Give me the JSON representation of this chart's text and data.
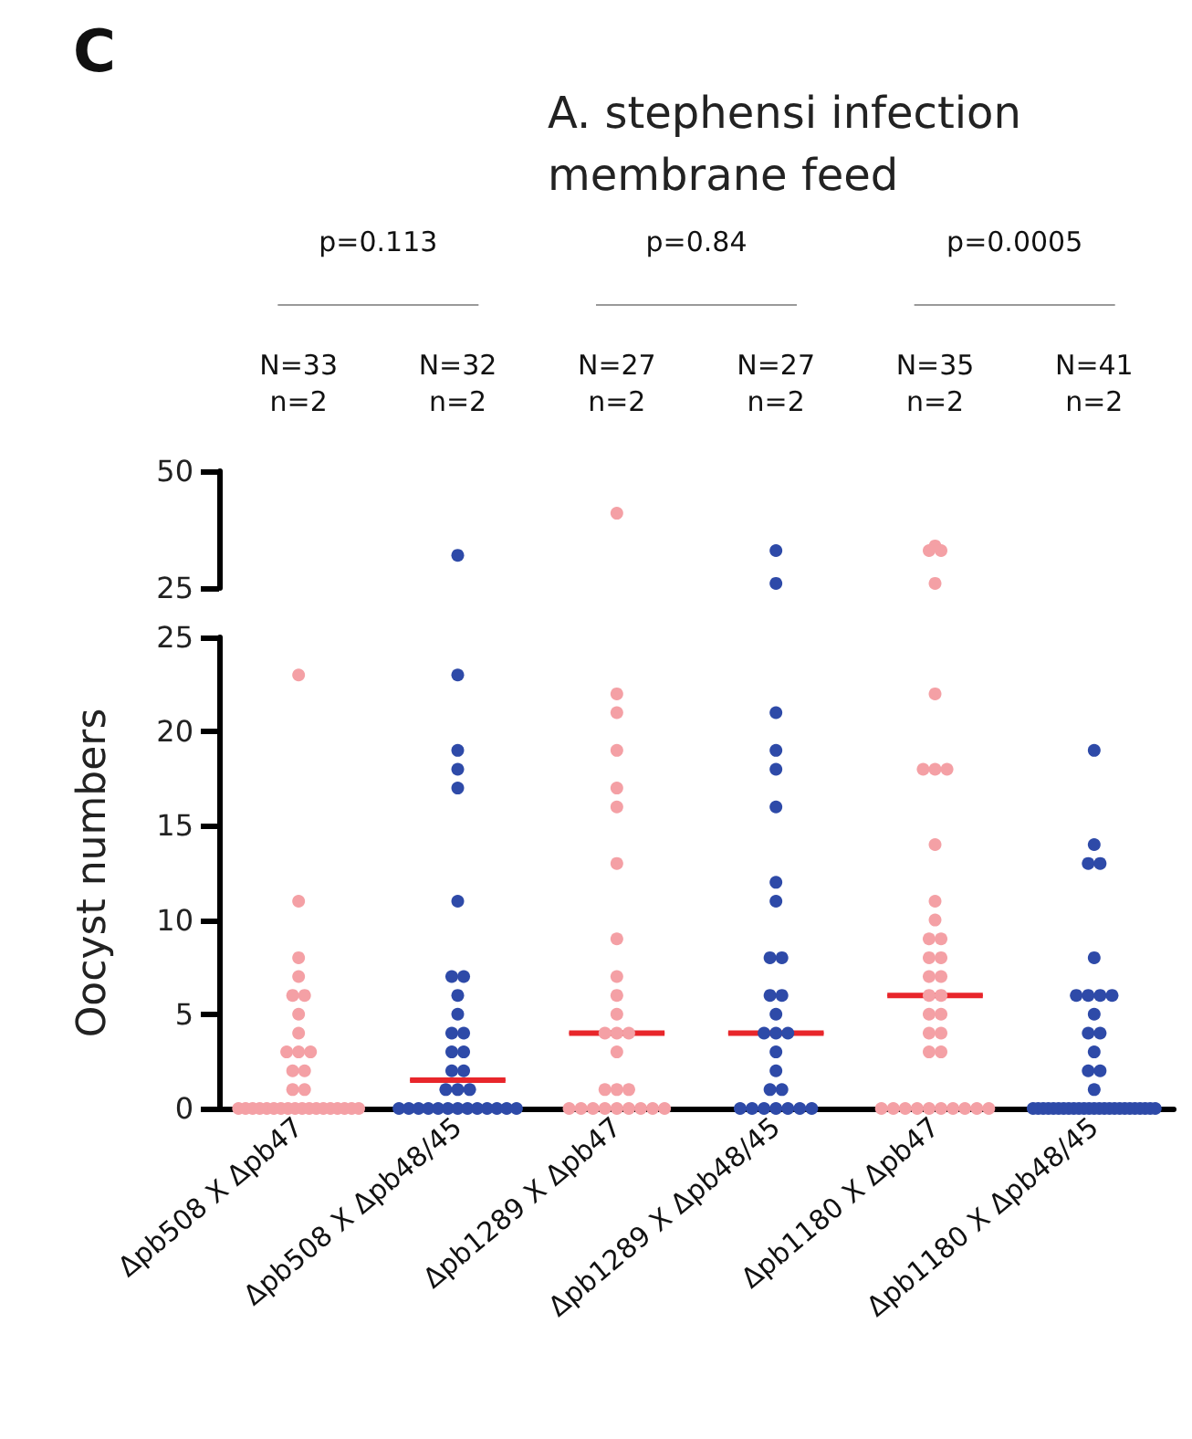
{
  "chart_data": [
    {
      "type": "scatter",
      "title": "A. stephensi infection\nmembrane feed",
      "annotations": [
        "C",
        "p=0.113",
        "p=0.84",
        "p=0.0005",
        "N=33\nn=2",
        "N=32\nn=2",
        "N=27\nn=2",
        "N=27\nn=2",
        "N=35\nn=2",
        "N=41\nn=2"
      ],
      "categories": [
        "Δpb508 X Δpb47",
        "Δpb508 X Δpb48/45",
        "Δpb1289 X Δpb47",
        "Δpb1289 X Δpb48/45",
        "Δpb1180 X Δpb47",
        "Δpb1180 X Δpb48/45"
      ],
      "series": [
        {
          "color": "#2e4aa8",
          "x": [
            "Δpb508 X Δpb48/45"
          ],
          "values": [
            32
          ]
        },
        {
          "color": "#f4a0a5",
          "x": [
            "Δpb1289 X Δpb47"
          ],
          "values": [
            41
          ]
        },
        {
          "color": "#2e4aa8",
          "x": [
            "Δpb1289 X Δpb48/45",
            "Δpb1289 X Δpb48/45"
          ],
          "values": [
            33,
            26
          ]
        },
        {
          "color": "#f4a0a5",
          "x": [
            "Δpb1180 X Δpb47",
            "Δpb1180 X Δpb47",
            "Δpb1180 X Δpb47",
            "Δpb1180 X Δpb47"
          ],
          "values": [
            34,
            33,
            33,
            26
          ]
        }
      ],
      "ylim": [
        25,
        50
      ],
      "yticks": [
        25,
        50
      ],
      "tick_labels": "y",
      "grid": false,
      "marker": "circle"
    },
    {
      "type": "scatter",
      "ylabel": "Oocyst numbers",
      "categories": [
        "Δpb508 X Δpb47",
        "Δpb508 X Δpb48/45",
        "Δpb1289 X Δpb47",
        "Δpb1289 X Δpb48/45",
        "Δpb1180 X Δpb47",
        "Δpb1180 X Δpb48/45"
      ],
      "series": [
        {
          "color": "#f4a0a5",
          "x": [
            "Δpb508 X Δpb47",
            "Δpb508 X Δpb47",
            "Δpb508 X Δpb47",
            "Δpb508 X Δpb47",
            "Δpb508 X Δpb47",
            "Δpb508 X Δpb47",
            "Δpb508 X Δpb47",
            "Δpb508 X Δpb47",
            "Δpb508 X Δpb47",
            "Δpb508 X Δpb47",
            "Δpb508 X Δpb47",
            "Δpb508 X Δpb47",
            "Δpb508 X Δpb47",
            "Δpb508 X Δpb47",
            "Δpb508 X Δpb47",
            "Δpb508 X Δpb47",
            "Δpb508 X Δpb47",
            "Δpb508 X Δpb47",
            "Δpb508 X Δpb47",
            "Δpb508 X Δpb47",
            "Δpb508 X Δpb47",
            "Δpb508 X Δpb47",
            "Δpb508 X Δpb47",
            "Δpb508 X Δpb47",
            "Δpb508 X Δpb47",
            "Δpb508 X Δpb47",
            "Δpb508 X Δpb47",
            "Δpb508 X Δpb47",
            "Δpb508 X Δpb47",
            "Δpb508 X Δpb47",
            "Δpb508 X Δpb47",
            "Δpb508 X Δpb47",
            "Δpb508 X Δpb47"
          ],
          "values": [
            23,
            11,
            8,
            7,
            6,
            6,
            5,
            4,
            3,
            3,
            3,
            2,
            2,
            1,
            1,
            0,
            0,
            0,
            0,
            0,
            0,
            0,
            0,
            0,
            0,
            0,
            0,
            0,
            0,
            0,
            0,
            0,
            0
          ]
        },
        {
          "color": "#2e4aa8",
          "x": [
            "Δpb508 X Δpb48/45",
            "Δpb508 X Δpb48/45",
            "Δpb508 X Δpb48/45",
            "Δpb508 X Δpb48/45",
            "Δpb508 X Δpb48/45",
            "Δpb508 X Δpb48/45",
            "Δpb508 X Δpb48/45",
            "Δpb508 X Δpb48/45",
            "Δpb508 X Δpb48/45",
            "Δpb508 X Δpb48/45",
            "Δpb508 X Δpb48/45",
            "Δpb508 X Δpb48/45",
            "Δpb508 X Δpb48/45",
            "Δpb508 X Δpb48/45",
            "Δpb508 X Δpb48/45",
            "Δpb508 X Δpb48/45",
            "Δpb508 X Δpb48/45",
            "Δpb508 X Δpb48/45",
            "Δpb508 X Δpb48/45",
            "Δpb508 X Δpb48/45",
            "Δpb508 X Δpb48/45",
            "Δpb508 X Δpb48/45",
            "Δpb508 X Δpb48/45",
            "Δpb508 X Δpb48/45",
            "Δpb508 X Δpb48/45",
            "Δpb508 X Δpb48/45",
            "Δpb508 X Δpb48/45",
            "Δpb508 X Δpb48/45",
            "Δpb508 X Δpb48/45",
            "Δpb508 X Δpb48/45",
            "Δpb508 X Δpb48/45"
          ],
          "values": [
            23,
            19,
            18,
            17,
            11,
            7,
            7,
            6,
            5,
            4,
            4,
            3,
            3,
            2,
            2,
            1,
            1,
            1,
            0,
            0,
            0,
            0,
            0,
            0,
            0,
            0,
            0,
            0,
            0,
            0,
            0
          ]
        },
        {
          "color": "#f4a0a5",
          "x": [
            "Δpb1289 X Δpb47",
            "Δpb1289 X Δpb47",
            "Δpb1289 X Δpb47",
            "Δpb1289 X Δpb47",
            "Δpb1289 X Δpb47",
            "Δpb1289 X Δpb47",
            "Δpb1289 X Δpb47",
            "Δpb1289 X Δpb47",
            "Δpb1289 X Δpb47",
            "Δpb1289 X Δpb47",
            "Δpb1289 X Δpb47",
            "Δpb1289 X Δpb47",
            "Δpb1289 X Δpb47",
            "Δpb1289 X Δpb47",
            "Δpb1289 X Δpb47",
            "Δpb1289 X Δpb47",
            "Δpb1289 X Δpb47",
            "Δpb1289 X Δpb47",
            "Δpb1289 X Δpb47",
            "Δpb1289 X Δpb47",
            "Δpb1289 X Δpb47",
            "Δpb1289 X Δpb47",
            "Δpb1289 X Δpb47",
            "Δpb1289 X Δpb47",
            "Δpb1289 X Δpb47",
            "Δpb1289 X Δpb47"
          ],
          "values": [
            22,
            21,
            19,
            17,
            16,
            13,
            9,
            7,
            6,
            5,
            4,
            4,
            4,
            3,
            1,
            1,
            1,
            0,
            0,
            0,
            0,
            0,
            0,
            0,
            0,
            0
          ]
        },
        {
          "color": "#2e4aa8",
          "x": [
            "Δpb1289 X Δpb48/45",
            "Δpb1289 X Δpb48/45",
            "Δpb1289 X Δpb48/45",
            "Δpb1289 X Δpb48/45",
            "Δpb1289 X Δpb48/45",
            "Δpb1289 X Δpb48/45",
            "Δpb1289 X Δpb48/45",
            "Δpb1289 X Δpb48/45",
            "Δpb1289 X Δpb48/45",
            "Δpb1289 X Δpb48/45",
            "Δpb1289 X Δpb48/45",
            "Δpb1289 X Δpb48/45",
            "Δpb1289 X Δpb48/45",
            "Δpb1289 X Δpb48/45",
            "Δpb1289 X Δpb48/45",
            "Δpb1289 X Δpb48/45",
            "Δpb1289 X Δpb48/45",
            "Δpb1289 X Δpb48/45",
            "Δpb1289 X Δpb48/45",
            "Δpb1289 X Δpb48/45",
            "Δpb1289 X Δpb48/45",
            "Δpb1289 X Δpb48/45",
            "Δpb1289 X Δpb48/45",
            "Δpb1289 X Δpb48/45",
            "Δpb1289 X Δpb48/45"
          ],
          "values": [
            21,
            19,
            18,
            16,
            12,
            11,
            8,
            8,
            6,
            6,
            5,
            4,
            4,
            4,
            3,
            2,
            1,
            1,
            0,
            0,
            0,
            0,
            0,
            0,
            0
          ]
        },
        {
          "color": "#f4a0a5",
          "x": [
            "Δpb1180 X Δpb47",
            "Δpb1180 X Δpb47",
            "Δpb1180 X Δpb47",
            "Δpb1180 X Δpb47",
            "Δpb1180 X Δpb47",
            "Δpb1180 X Δpb47",
            "Δpb1180 X Δpb47",
            "Δpb1180 X Δpb47",
            "Δpb1180 X Δpb47",
            "Δpb1180 X Δpb47",
            "Δpb1180 X Δpb47",
            "Δpb1180 X Δpb47",
            "Δpb1180 X Δpb47",
            "Δpb1180 X Δpb47",
            "Δpb1180 X Δpb47",
            "Δpb1180 X Δpb47",
            "Δpb1180 X Δpb47",
            "Δpb1180 X Δpb47",
            "Δpb1180 X Δpb47",
            "Δpb1180 X Δpb47",
            "Δpb1180 X Δpb47",
            "Δpb1180 X Δpb47",
            "Δpb1180 X Δpb47",
            "Δpb1180 X Δpb47",
            "Δpb1180 X Δpb47",
            "Δpb1180 X Δpb47",
            "Δpb1180 X Δpb47",
            "Δpb1180 X Δpb47",
            "Δpb1180 X Δpb47",
            "Δpb1180 X Δpb47",
            "Δpb1180 X Δpb47"
          ],
          "values": [
            22,
            18,
            18,
            18,
            14,
            11,
            10,
            9,
            9,
            8,
            8,
            7,
            7,
            6,
            6,
            5,
            5,
            4,
            4,
            3,
            3,
            0,
            0,
            0,
            0,
            0,
            0,
            0,
            0,
            0,
            0
          ]
        },
        {
          "color": "#2e4aa8",
          "x": [
            "Δpb1180 X Δpb48/45",
            "Δpb1180 X Δpb48/45",
            "Δpb1180 X Δpb48/45",
            "Δpb1180 X Δpb48/45",
            "Δpb1180 X Δpb48/45",
            "Δpb1180 X Δpb48/45",
            "Δpb1180 X Δpb48/45",
            "Δpb1180 X Δpb48/45",
            "Δpb1180 X Δpb48/45",
            "Δpb1180 X Δpb48/45",
            "Δpb1180 X Δpb48/45",
            "Δpb1180 X Δpb48/45",
            "Δpb1180 X Δpb48/45",
            "Δpb1180 X Δpb48/45",
            "Δpb1180 X Δpb48/45",
            "Δpb1180 X Δpb48/45",
            "Δpb1180 X Δpb48/45",
            "Δpb1180 X Δpb48/45",
            "Δpb1180 X Δpb48/45",
            "Δpb1180 X Δpb48/45",
            "Δpb1180 X Δpb48/45",
            "Δpb1180 X Δpb48/45",
            "Δpb1180 X Δpb48/45",
            "Δpb1180 X Δpb48/45",
            "Δpb1180 X Δpb48/45",
            "Δpb1180 X Δpb48/45",
            "Δpb1180 X Δpb48/45",
            "Δpb1180 X Δpb48/45",
            "Δpb1180 X Δpb48/45",
            "Δpb1180 X Δpb48/45",
            "Δpb1180 X Δpb48/45",
            "Δpb1180 X Δpb48/45",
            "Δpb1180 X Δpb48/45",
            "Δpb1180 X Δpb48/45",
            "Δpb1180 X Δpb48/45",
            "Δpb1180 X Δpb48/45",
            "Δpb1180 X Δpb48/45",
            "Δpb1180 X Δpb48/45",
            "Δpb1180 X Δpb48/45",
            "Δpb1180 X Δpb48/45",
            "Δpb1180 X Δpb48/45"
          ],
          "values": [
            19,
            14,
            13,
            13,
            8,
            6,
            6,
            6,
            6,
            5,
            4,
            4,
            3,
            2,
            2,
            1,
            0,
            0,
            0,
            0,
            0,
            0,
            0,
            0,
            0,
            0,
            0,
            0,
            0,
            0,
            0,
            0,
            0,
            0,
            0,
            0,
            0,
            0,
            0,
            0,
            0
          ]
        },
        {
          "type": "box",
          "color": "#e8262b",
          "boxes": [
            {
              "low": 0,
              "q1": 0,
              "median": 0,
              "q3": 0,
              "high": 0
            },
            {
              "low": 1.5,
              "q1": 1.5,
              "median": 1.5,
              "q3": 1.5,
              "high": 1.5
            },
            {
              "low": 4,
              "q1": 4,
              "median": 4,
              "q3": 4,
              "high": 4
            },
            {
              "low": 4,
              "q1": 4,
              "median": 4,
              "q3": 4,
              "high": 4
            },
            {
              "low": 6,
              "q1": 6,
              "median": 6,
              "q3": 6,
              "high": 6
            },
            {
              "low": 0,
              "q1": 0,
              "median": 0,
              "q3": 0,
              "high": 0
            }
          ]
        }
      ],
      "ylim": [
        0,
        25
      ],
      "yticks": [
        0,
        5,
        10,
        15,
        20,
        25
      ],
      "grid": false,
      "marker": "circle"
    }
  ]
}
